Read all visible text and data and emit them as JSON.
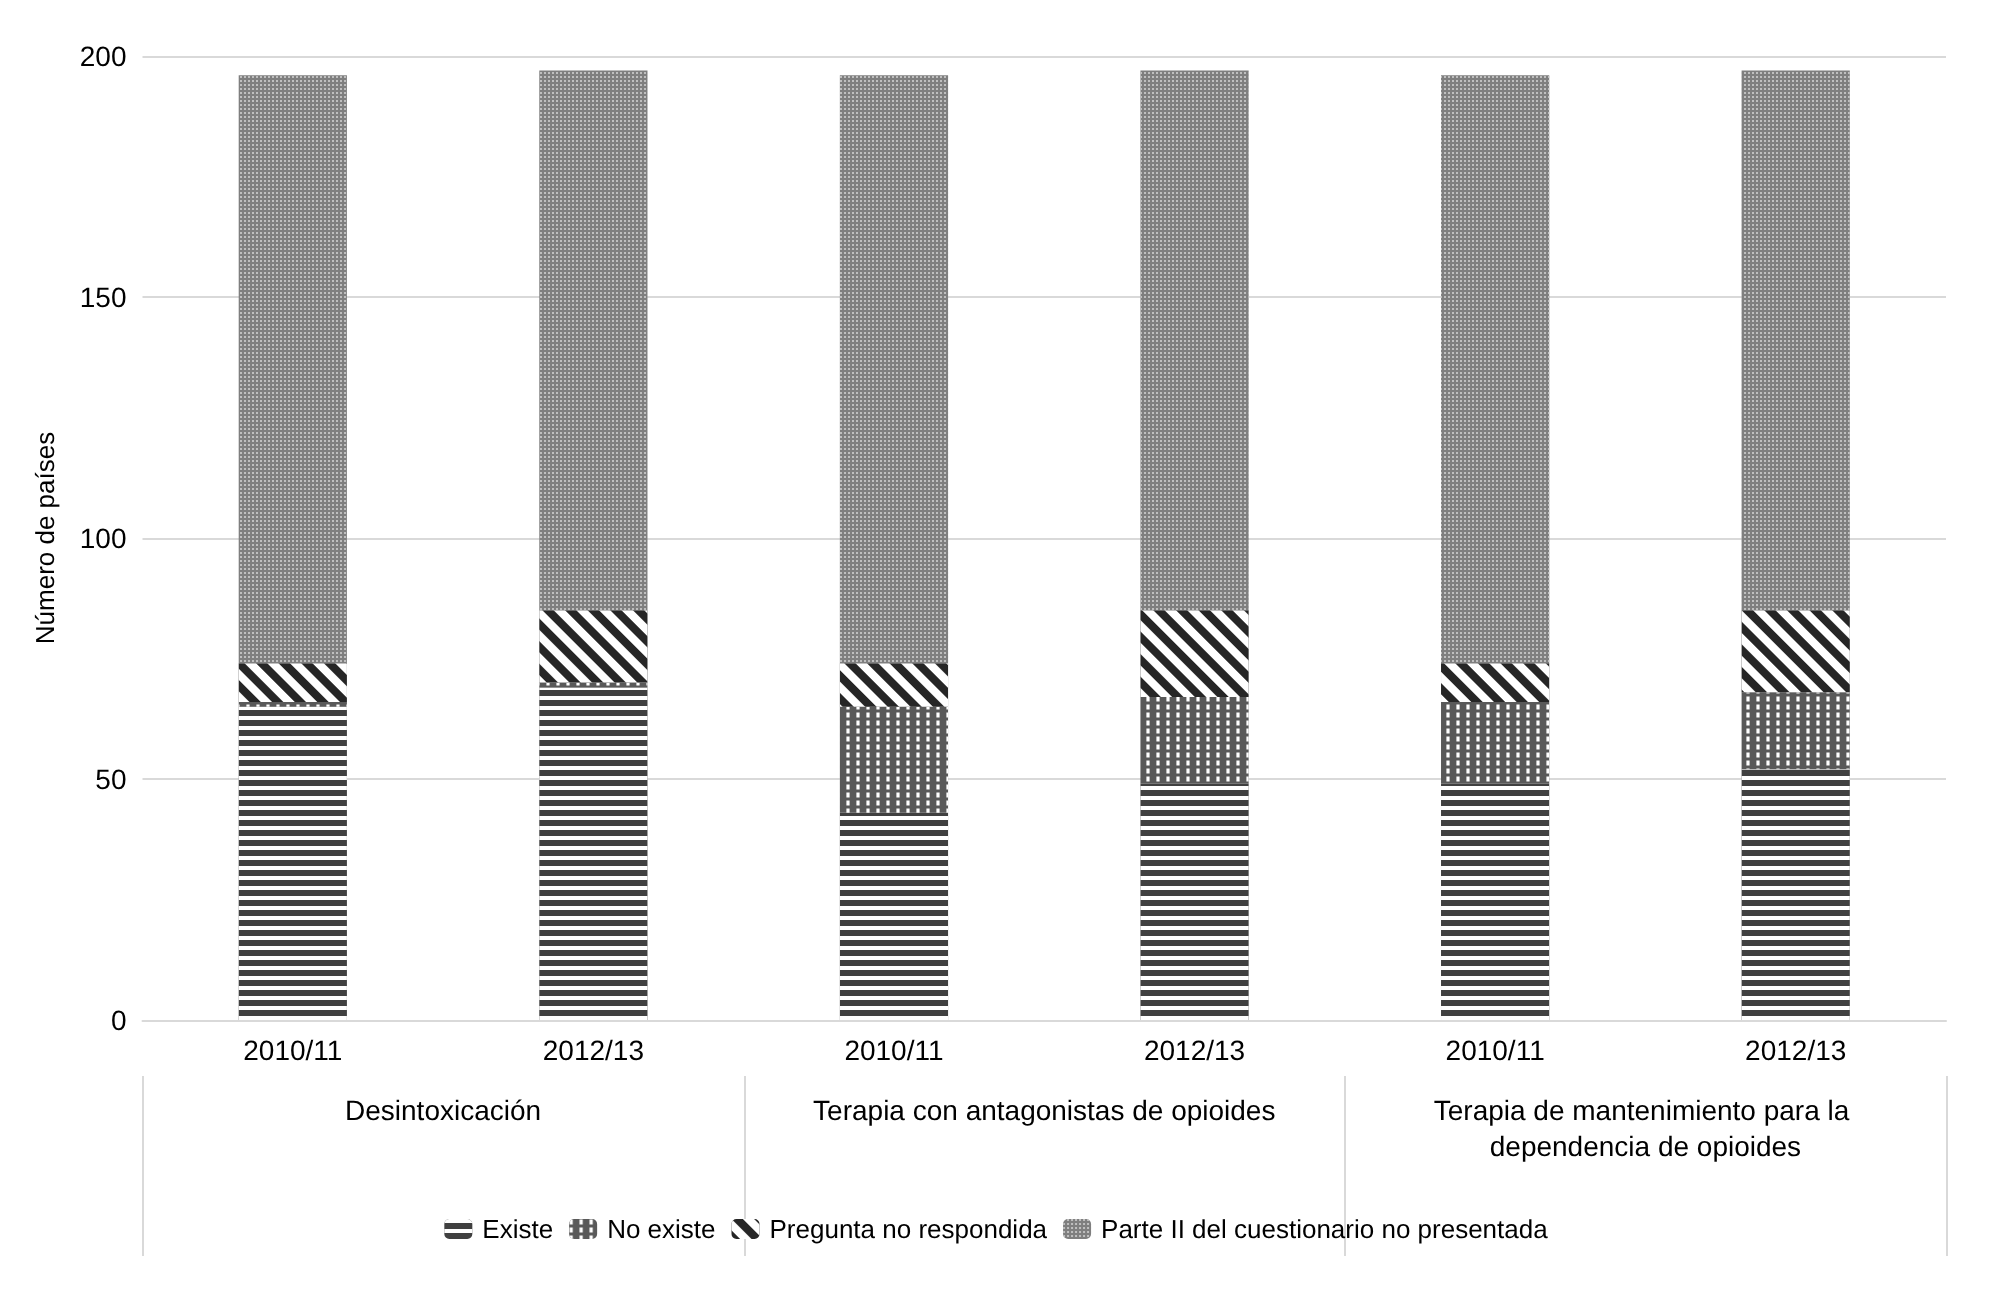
{
  "chart_data": {
    "type": "bar",
    "stacked": true,
    "ylabel": "Número de países",
    "categories": [
      "2010/11",
      "2012/13",
      "2010/11",
      "2012/13",
      "2010/11",
      "2012/13"
    ],
    "annotations": [
      "Desintoxicación",
      "Terapia con antagonistas de opioides",
      "Terapia de mantenimiento para la dependencia de opioides"
    ],
    "series": [
      {
        "name": "Existe",
        "color": "#404040",
        "values": [
          65,
          69,
          43,
          49,
          49,
          52
        ]
      },
      {
        "name": "No existe",
        "color": "#595959",
        "values": [
          1,
          1,
          22,
          18,
          17,
          16
        ]
      },
      {
        "name": "Pregunta no respondida",
        "color": "#262626",
        "values": [
          8,
          15,
          9,
          18,
          8,
          17
        ]
      },
      {
        "name": "Parte II del cuestionario no presentada",
        "color": "#7f7f7f",
        "values": [
          122,
          112,
          122,
          112,
          122,
          112
        ]
      }
    ],
    "ylim": [
      0,
      200
    ],
    "yticks": [
      0,
      50,
      100,
      150,
      200
    ],
    "grid": "y",
    "legend": "bottom"
  }
}
